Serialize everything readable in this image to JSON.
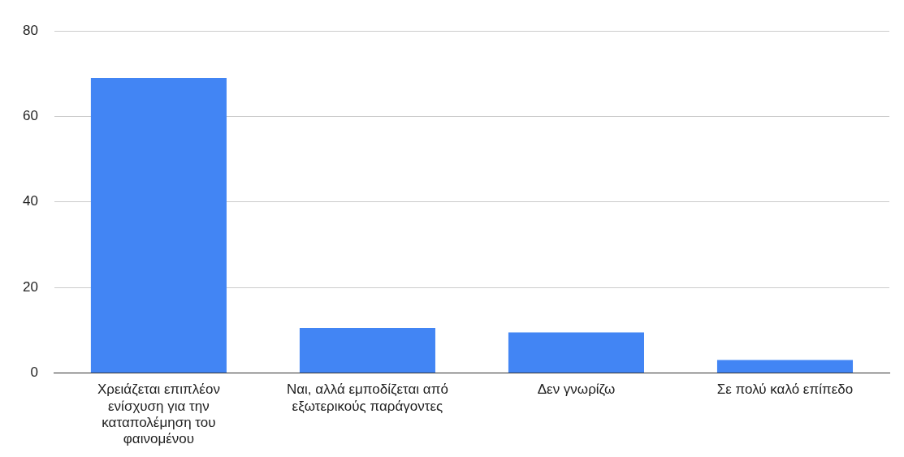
{
  "chart_data": {
    "type": "bar",
    "categories": [
      "Χρειάζεται επιπλέον ενίσχυση για την καταπολέμηση του φαινομένου",
      "Ναι, αλλά εμποδίζεται από εξωτερικούς παράγοντες",
      "Δεν γνωρίζω",
      "Σε πολύ καλό επίπεδο"
    ],
    "values": [
      69,
      10.5,
      9.5,
      3
    ],
    "color": "#4285f4",
    "ylim": [
      0,
      80
    ],
    "yticks": [
      0,
      20,
      40,
      60,
      80
    ],
    "grid": "y",
    "legend": false
  }
}
